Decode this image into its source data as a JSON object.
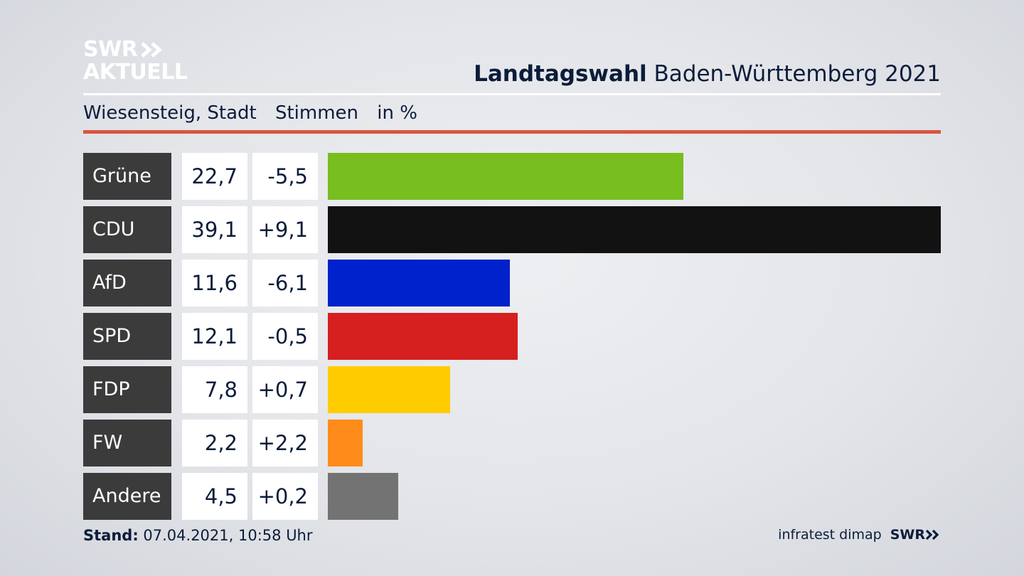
{
  "logo": {
    "line1": "SWR",
    "line2": "AKTUELL"
  },
  "header": {
    "title_strong": "Landtagswahl",
    "title_rest": "Baden-Württemberg 2021"
  },
  "subheader": {
    "location": "Wiesensteig, Stadt",
    "metric": "Stimmen",
    "unit": "in %"
  },
  "colors": {
    "accent_rule": "#d9553f"
  },
  "chart_data": {
    "type": "bar",
    "orientation": "horizontal",
    "categories": [
      "Grüne",
      "CDU",
      "AfD",
      "SPD",
      "FDP",
      "FW",
      "Andere"
    ],
    "values": [
      22.7,
      39.1,
      11.6,
      12.1,
      7.8,
      2.2,
      4.5
    ],
    "values_label": [
      "22,7",
      "39,1",
      "11,6",
      "12,1",
      "7,8",
      "2,2",
      "4,5"
    ],
    "diffs": [
      -5.5,
      9.1,
      -6.1,
      -0.5,
      0.7,
      2.2,
      0.2
    ],
    "diffs_label": [
      "-5,5",
      "+9,1",
      "-6,1",
      "-0,5",
      "+0,7",
      "+2,2",
      "+0,2"
    ],
    "colors": [
      "#78be1e",
      "#121212",
      "#0022cc",
      "#d61f1f",
      "#ffcc00",
      "#ff8c1a",
      "#737373"
    ],
    "xlim": [
      0,
      39.1
    ]
  },
  "footer": {
    "stand_label": "Stand:",
    "stand_value": "07.04.2021, 10:58 Uhr",
    "source": "infratest dimap",
    "brand": "SWR"
  }
}
